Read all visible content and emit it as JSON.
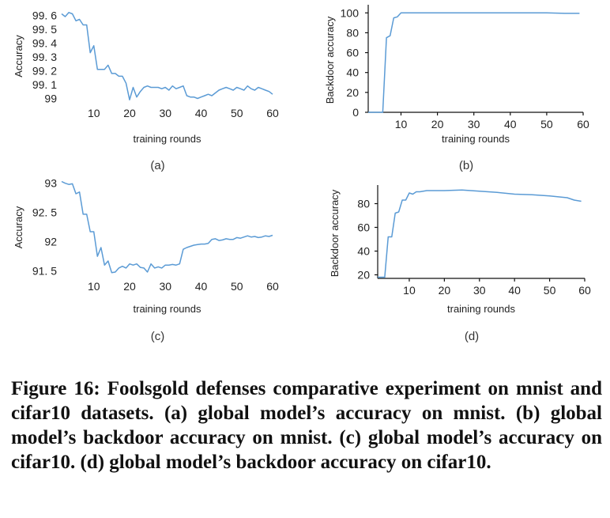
{
  "caption": "Figure 16: Foolsgold defenses comparative experiment on mnist and cifar10 datasets. (a) global model’s accuracy on mnist. (b) global model’s backdoor accuracy on mnist. (c) global model’s accuracy on cifar10. (d) global model’s backdoor accuracy on cifar10.",
  "colors": {
    "series": "#5b9bd5",
    "axis": "#111111"
  },
  "chart_data": [
    {
      "id": "a",
      "type": "line",
      "sublabel": "(a)",
      "xlabel": "training rounds",
      "ylabel": "Accuracy",
      "xlim": [
        1,
        60
      ],
      "ylim": [
        98.98,
        99.63
      ],
      "xticks": [
        10,
        20,
        30,
        40,
        50,
        60
      ],
      "xtick_labels": [
        "10",
        "20",
        "30",
        "40",
        "50",
        "60"
      ],
      "yticks": [
        99,
        99.1,
        99.2,
        99.3,
        99.4,
        99.5,
        99.6
      ],
      "ytick_labels": [
        "99",
        "99. 1",
        "99. 2",
        "99. 3",
        "99. 4",
        "99. 5",
        "99. 6"
      ],
      "x_axis_line": false,
      "y_axis_line": false,
      "x": [
        1,
        2,
        3,
        4,
        5,
        6,
        7,
        8,
        9,
        10,
        11,
        12,
        13,
        14,
        15,
        16,
        17,
        18,
        19,
        20,
        21,
        22,
        23,
        24,
        25,
        26,
        27,
        28,
        29,
        30,
        31,
        32,
        33,
        34,
        35,
        36,
        37,
        38,
        39,
        40,
        41,
        42,
        43,
        44,
        45,
        46,
        47,
        48,
        49,
        50,
        51,
        52,
        53,
        54,
        55,
        56,
        57,
        58,
        59,
        60
      ],
      "y": [
        99.61,
        99.59,
        99.62,
        99.61,
        99.56,
        99.57,
        99.53,
        99.53,
        99.33,
        99.38,
        99.21,
        99.21,
        99.21,
        99.24,
        99.18,
        99.18,
        99.16,
        99.16,
        99.11,
        98.99,
        99.08,
        99.01,
        99.05,
        99.08,
        99.09,
        99.08,
        99.08,
        99.08,
        99.07,
        99.08,
        99.06,
        99.09,
        99.07,
        99.08,
        99.09,
        99.02,
        99.01,
        99.01,
        99.0,
        99.01,
        99.02,
        99.03,
        99.02,
        99.04,
        99.06,
        99.07,
        99.08,
        99.07,
        99.06,
        99.08,
        99.07,
        99.06,
        99.09,
        99.07,
        99.06,
        99.08,
        99.07,
        99.06,
        99.05,
        99.03
      ]
    },
    {
      "id": "b",
      "type": "line",
      "sublabel": "(b)",
      "xlabel": "training rounds",
      "ylabel": "Backdoor accuracy",
      "xlim": [
        1,
        60
      ],
      "ylim": [
        0,
        105
      ],
      "xticks": [
        10,
        20,
        30,
        40,
        50,
        60
      ],
      "xtick_labels": [
        "10",
        "20",
        "30",
        "40",
        "50",
        "60"
      ],
      "yticks": [
        0,
        20,
        40,
        60,
        80,
        100
      ],
      "ytick_labels": [
        "0",
        "20",
        "40",
        "60",
        "80",
        "100"
      ],
      "x_axis_line": true,
      "y_axis_line": true,
      "x": [
        1,
        5,
        6,
        7,
        8,
        9,
        10,
        15,
        20,
        30,
        40,
        50,
        55,
        59
      ],
      "y": [
        0,
        0,
        75,
        77,
        95,
        96,
        100,
        100,
        100,
        100,
        100,
        100,
        99.5,
        99.5
      ]
    },
    {
      "id": "c",
      "type": "line",
      "sublabel": "(c)",
      "xlabel": "training rounds",
      "ylabel": "Accuracy",
      "xlim": [
        1,
        60
      ],
      "ylim": [
        91.44,
        93.05
      ],
      "xticks": [
        10,
        20,
        30,
        40,
        50,
        60
      ],
      "xtick_labels": [
        "10",
        "20",
        "30",
        "40",
        "50",
        "60"
      ],
      "yticks": [
        91.5,
        92,
        92.5,
        93
      ],
      "ytick_labels": [
        "91. 5",
        "92",
        "92. 5",
        "93"
      ],
      "x_axis_line": false,
      "y_axis_line": false,
      "x": [
        1,
        2,
        3,
        4,
        5,
        6,
        7,
        8,
        9,
        10,
        11,
        12,
        13,
        14,
        15,
        16,
        17,
        18,
        19,
        20,
        21,
        22,
        23,
        24,
        25,
        26,
        27,
        28,
        29,
        30,
        31,
        32,
        33,
        34,
        35,
        36,
        37,
        38,
        39,
        40,
        41,
        42,
        43,
        44,
        45,
        46,
        47,
        48,
        49,
        50,
        51,
        52,
        53,
        54,
        55,
        56,
        57,
        58,
        59,
        60
      ],
      "y": [
        93.03,
        93.0,
        92.98,
        92.99,
        92.82,
        92.85,
        92.47,
        92.47,
        92.17,
        92.17,
        91.75,
        91.9,
        91.6,
        91.67,
        91.47,
        91.48,
        91.55,
        91.58,
        91.55,
        91.62,
        91.6,
        91.62,
        91.56,
        91.55,
        91.48,
        91.62,
        91.55,
        91.57,
        91.55,
        91.6,
        91.6,
        91.61,
        91.6,
        91.62,
        91.87,
        91.9,
        91.92,
        91.94,
        91.95,
        91.96,
        91.96,
        91.97,
        92.04,
        92.05,
        92.02,
        92.03,
        92.05,
        92.04,
        92.04,
        92.07,
        92.06,
        92.08,
        92.1,
        92.08,
        92.09,
        92.07,
        92.08,
        92.1,
        92.09,
        92.11
      ]
    },
    {
      "id": "d",
      "type": "line",
      "sublabel": "(d)",
      "xlabel": "training rounds",
      "ylabel": "Backdoor accuracy",
      "xlim": [
        1,
        60
      ],
      "ylim": [
        17,
        93
      ],
      "xticks": [
        10,
        20,
        30,
        40,
        50,
        60
      ],
      "xtick_labels": [
        "10",
        "20",
        "30",
        "40",
        "50",
        "60"
      ],
      "yticks": [
        20,
        40,
        60,
        80
      ],
      "ytick_labels": [
        "20",
        "40",
        "60",
        "80"
      ],
      "x_axis_line": true,
      "y_axis_line": true,
      "x": [
        1,
        2,
        3,
        4,
        5,
        6,
        7,
        8,
        9,
        10,
        11,
        12,
        13,
        15,
        17,
        20,
        25,
        30,
        35,
        40,
        45,
        50,
        55,
        57,
        59
      ],
      "y": [
        18,
        18,
        18,
        52,
        52,
        72,
        73,
        83,
        83,
        89,
        88,
        90,
        90,
        91,
        91,
        91,
        91.5,
        90.5,
        89.5,
        88,
        87.5,
        86.5,
        85,
        83,
        82
      ]
    }
  ]
}
